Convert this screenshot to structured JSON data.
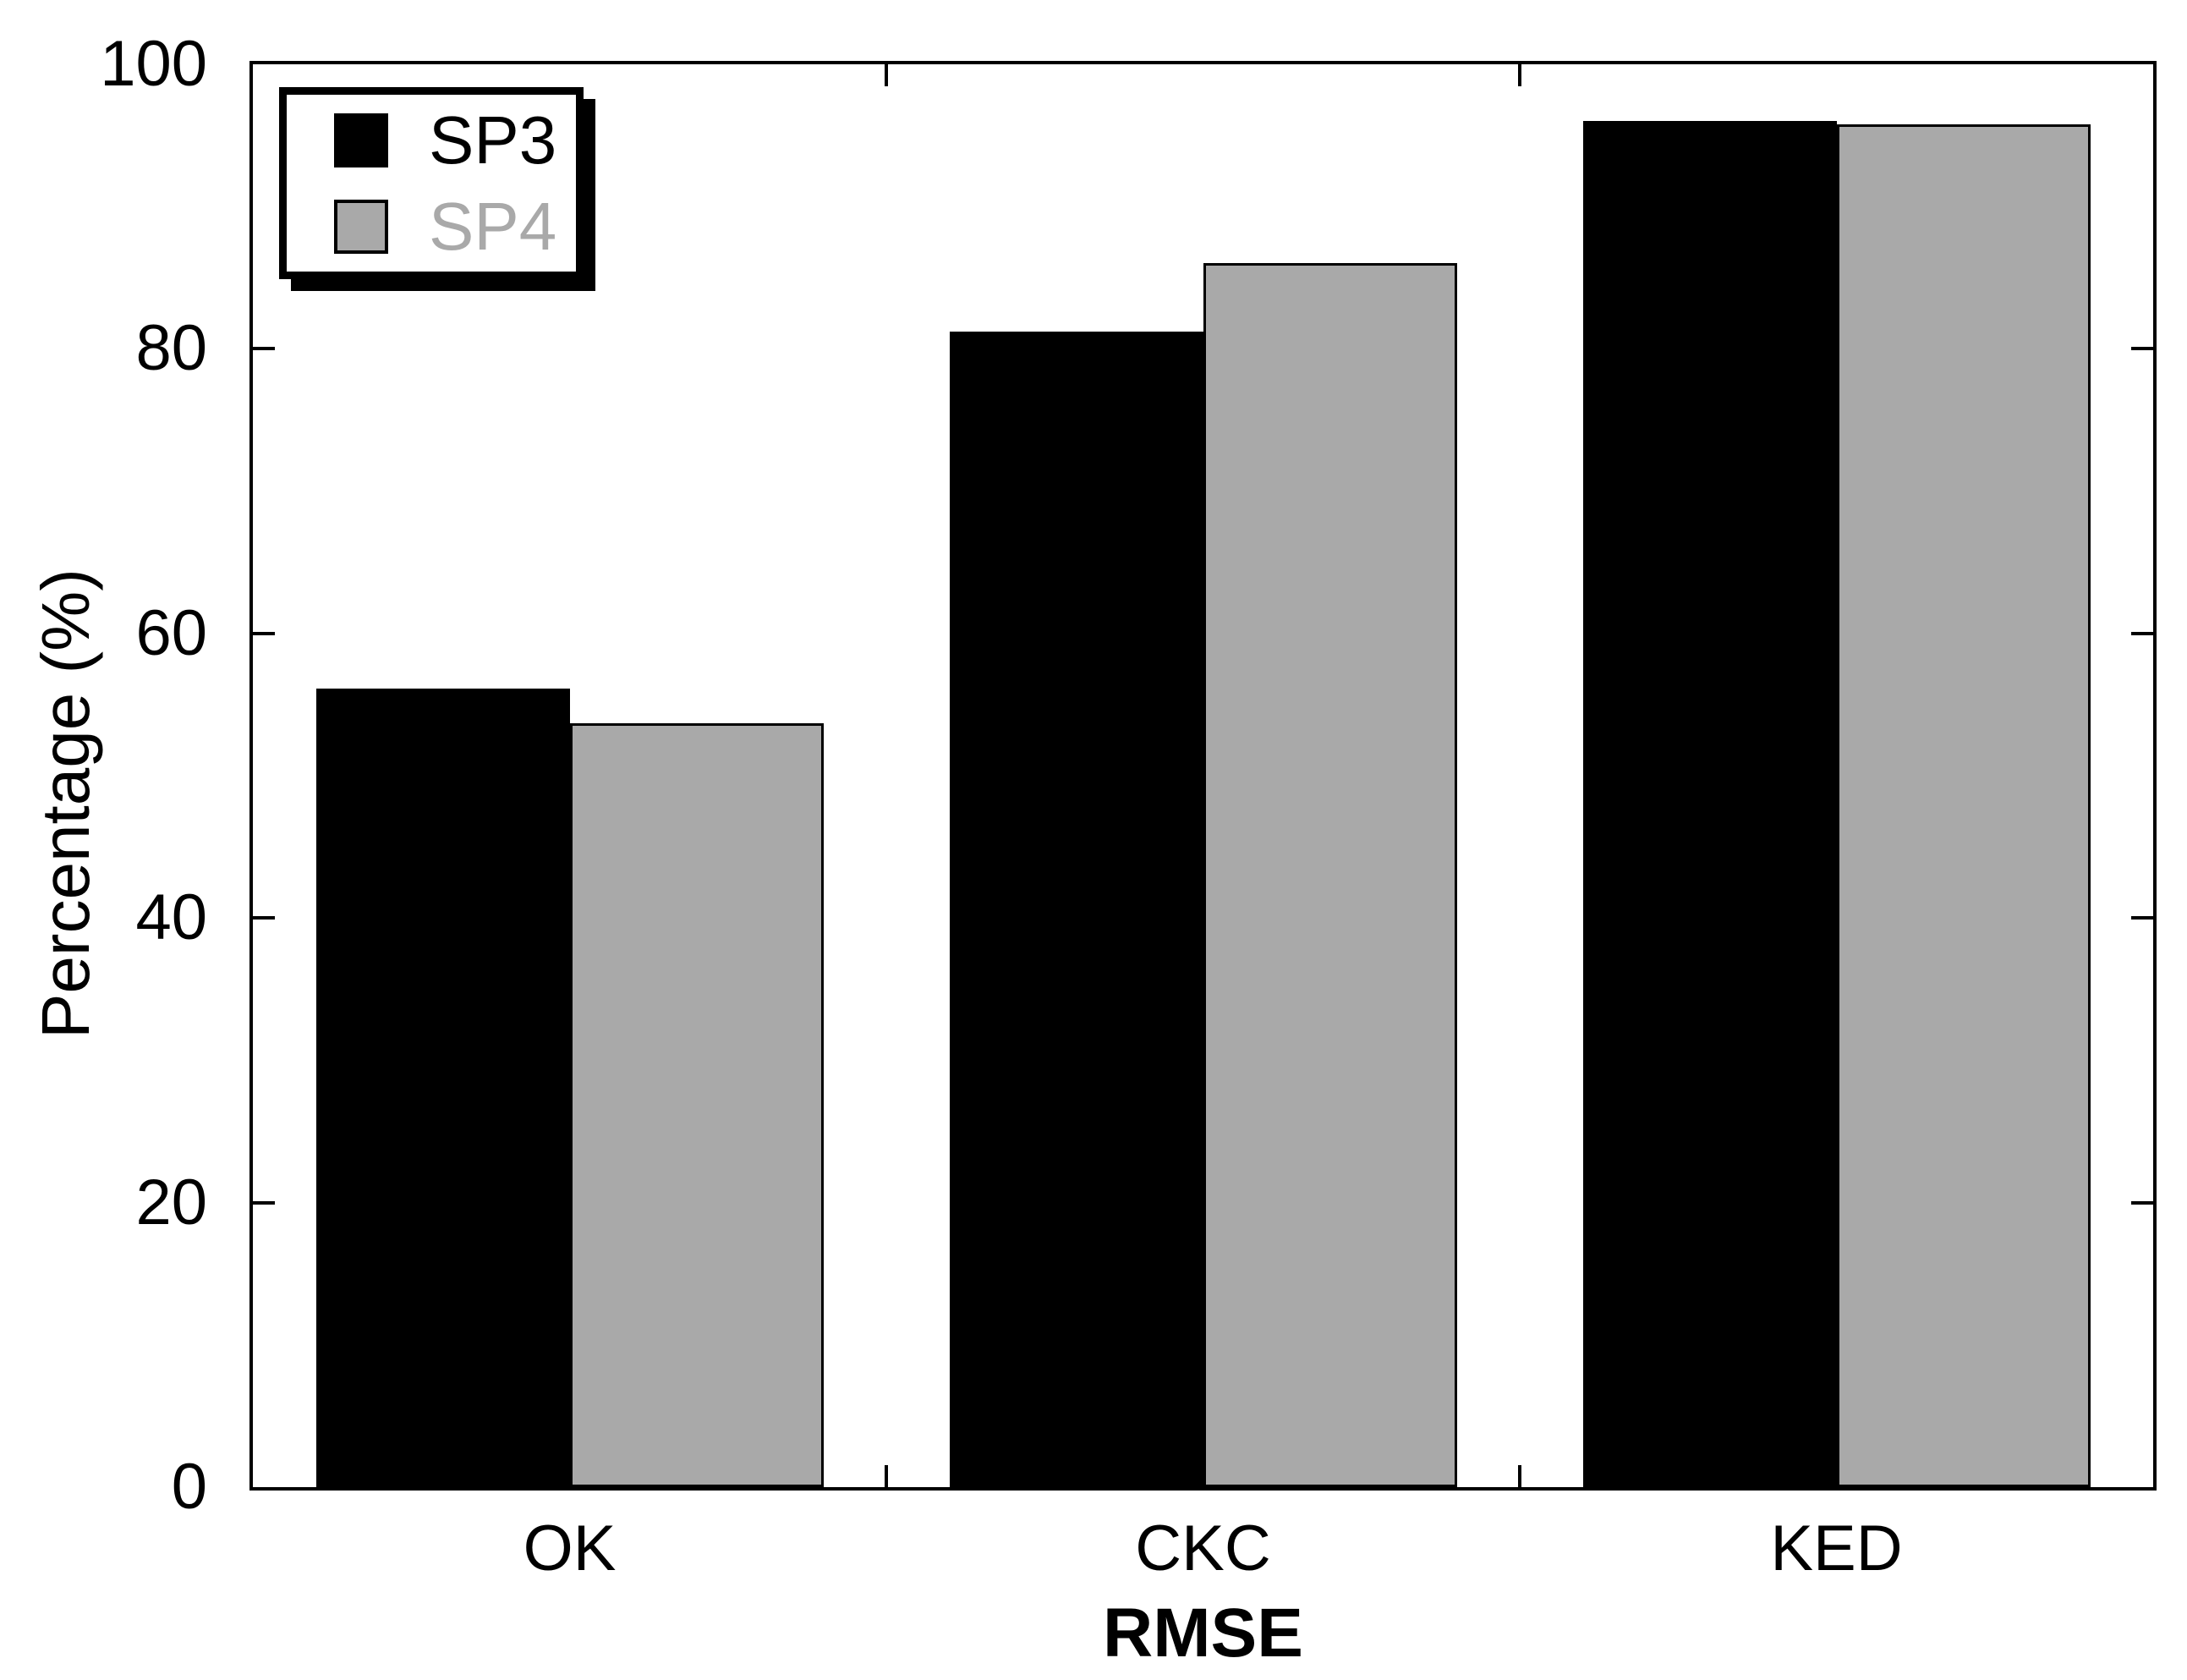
{
  "chart_data": {
    "type": "bar",
    "title": "",
    "xlabel": "RMSE",
    "ylabel": "Percentage (%)",
    "categories": [
      "OK",
      "CKC",
      "KED"
    ],
    "series": [
      {
        "name": "SP3",
        "color": "#000000",
        "label_color": "#000000",
        "values": [
          56.1,
          81.2,
          96.0
        ]
      },
      {
        "name": "SP4",
        "color": "#a9a9a9",
        "label_color": "#a9a9a9",
        "values": [
          53.7,
          86.0,
          95.8
        ]
      }
    ],
    "ylim": [
      0,
      100
    ],
    "yticks": [
      0,
      20,
      40,
      60,
      80,
      100
    ],
    "grid": "off",
    "legend_position": "top-left",
    "bar_outline_color": "#000000",
    "axis_color": "#000000",
    "background_color": "#ffffff"
  }
}
